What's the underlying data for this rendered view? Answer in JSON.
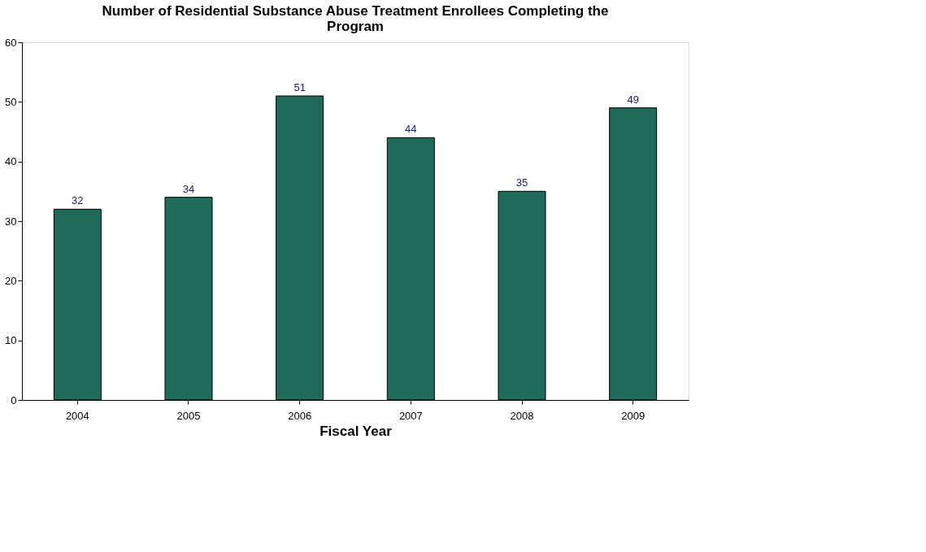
{
  "chart_data": {
    "type": "bar",
    "title": "Number of Residential Substance Abuse Treatment Enrollees Completing the Program",
    "xlabel": "Fiscal Year",
    "categories": [
      "2004",
      "2005",
      "2006",
      "2007",
      "2008",
      "2009"
    ],
    "values": [
      32,
      34,
      51,
      44,
      35,
      49
    ],
    "color": "#1f6b5a",
    "ylim": [
      0,
      60
    ],
    "yticks": [
      0,
      10,
      20,
      30,
      40,
      50,
      60
    ],
    "data_labels": true,
    "grid": false
  }
}
